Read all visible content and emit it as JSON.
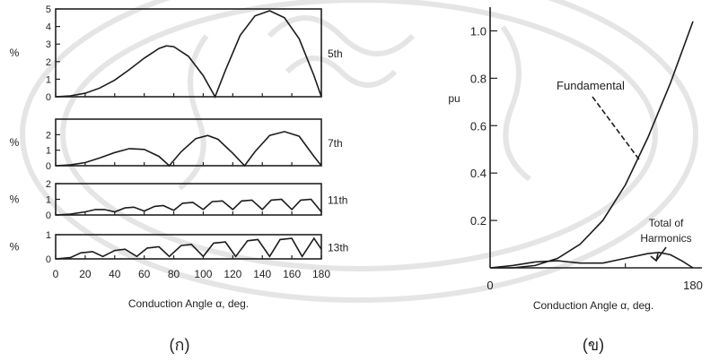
{
  "chart_data": [
    {
      "type": "line",
      "panel_label": "(ก)",
      "xlabel": "Conduction Angle  α, deg.",
      "xlim": [
        0,
        180
      ],
      "x_ticks": [
        "0",
        "20",
        "40",
        "60",
        "80",
        "100",
        "120",
        "140",
        "160",
        "180"
      ],
      "subplots": [
        {
          "harmonic": "5th",
          "ylabel": "%",
          "ylim": [
            0,
            5
          ],
          "y_ticks": [
            "0",
            "1",
            "2",
            "3",
            "4",
            "5"
          ],
          "x": [
            0,
            10,
            20,
            30,
            40,
            50,
            60,
            70,
            75,
            80,
            90,
            100,
            108,
            115,
            125,
            135,
            145,
            155,
            165,
            175,
            180
          ],
          "values": [
            0,
            0.05,
            0.2,
            0.5,
            0.95,
            1.55,
            2.2,
            2.75,
            2.9,
            2.85,
            2.3,
            1.2,
            0,
            1.5,
            3.5,
            4.6,
            4.9,
            4.5,
            3.3,
            1.2,
            0
          ]
        },
        {
          "harmonic": "7th",
          "ylabel": "%",
          "ylim": [
            0,
            3
          ],
          "y_ticks": [
            "0",
            "1",
            "2"
          ],
          "x": [
            0,
            10,
            20,
            30,
            40,
            50,
            60,
            70,
            77,
            85,
            95,
            103,
            110,
            120,
            128,
            135,
            145,
            155,
            165,
            175,
            180
          ],
          "values": [
            0,
            0.05,
            0.2,
            0.5,
            0.85,
            1.1,
            1.05,
            0.6,
            0,
            0.9,
            1.75,
            1.95,
            1.7,
            0.8,
            0,
            0.9,
            1.95,
            2.2,
            1.9,
            0.6,
            0
          ]
        },
        {
          "harmonic": "11th",
          "ylabel": "%",
          "ylim": [
            0,
            2
          ],
          "y_ticks": [
            "0",
            "1",
            "2"
          ],
          "x": [
            0,
            10,
            20,
            27,
            33,
            40,
            47,
            53,
            60,
            67,
            73,
            80,
            86,
            93,
            100,
            106,
            113,
            120,
            126,
            133,
            140,
            146,
            153,
            160,
            166,
            173,
            180
          ],
          "values": [
            0,
            0.05,
            0.2,
            0.35,
            0.35,
            0.2,
            0.45,
            0.5,
            0.25,
            0.55,
            0.6,
            0.3,
            0.75,
            0.8,
            0.35,
            0.85,
            0.9,
            0.35,
            0.9,
            0.95,
            0.35,
            0.95,
            1.0,
            0.35,
            0.95,
            1.0,
            0.2
          ]
        },
        {
          "harmonic": "13th",
          "ylabel": "%",
          "ylim": [
            0,
            1
          ],
          "y_ticks": [
            "0",
            "1"
          ],
          "x": [
            0,
            10,
            17,
            25,
            32,
            40,
            47,
            55,
            62,
            70,
            77,
            85,
            92,
            100,
            107,
            115,
            122,
            130,
            137,
            145,
            152,
            160,
            167,
            175,
            180
          ],
          "values": [
            0,
            0.05,
            0.25,
            0.3,
            0.1,
            0.35,
            0.4,
            0.1,
            0.45,
            0.5,
            0.1,
            0.55,
            0.6,
            0.1,
            0.65,
            0.7,
            0.1,
            0.75,
            0.8,
            0.1,
            0.8,
            0.85,
            0.1,
            0.85,
            0.4
          ]
        }
      ]
    },
    {
      "type": "line",
      "panel_label": "(ข)",
      "xlabel": "Conduction Angle  α, deg.",
      "ylabel": "pu",
      "xlim": [
        0,
        180
      ],
      "ylim": [
        0,
        1.1
      ],
      "x_ticks": [
        "0",
        "180"
      ],
      "y_ticks": [
        "0.2",
        "0.4",
        "0.6",
        "0.8",
        "1.0"
      ],
      "series": [
        {
          "name": "Fundamental",
          "x": [
            0,
            20,
            40,
            60,
            80,
            100,
            120,
            140,
            160,
            180
          ],
          "values": [
            0,
            0.0,
            0.01,
            0.04,
            0.1,
            0.2,
            0.35,
            0.55,
            0.78,
            1.04
          ]
        },
        {
          "name": "Total of Harmonics",
          "x": [
            0,
            20,
            40,
            60,
            80,
            100,
            120,
            140,
            150,
            160,
            170,
            180
          ],
          "values": [
            0,
            0.01,
            0.025,
            0.03,
            0.02,
            0.02,
            0.04,
            0.06,
            0.065,
            0.055,
            0.03,
            0
          ]
        }
      ]
    }
  ]
}
